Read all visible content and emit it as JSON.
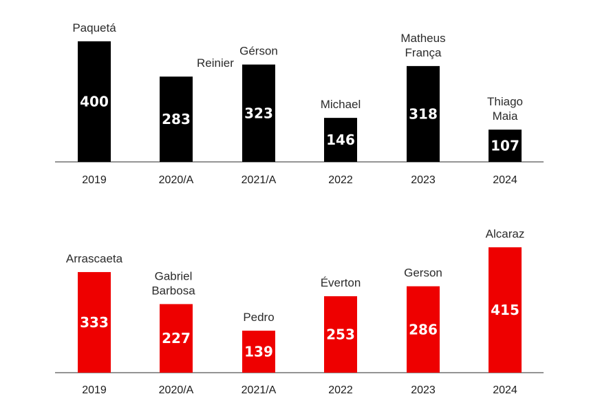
{
  "chart_data": [
    {
      "type": "bar",
      "title": "",
      "xlabel": "",
      "ylabel": "",
      "categories": [
        "2019",
        "2020/A",
        "2021/A",
        "2022",
        "2023",
        "2024"
      ],
      "series": [
        {
          "values": [
            400,
            283,
            323,
            146,
            318,
            107
          ]
        }
      ],
      "players": [
        "Paquetá",
        "Reinier",
        "Gérson",
        "Michael",
        "Matheus França",
        "Thiago Maia"
      ],
      "bar_color": "#000000",
      "ylim": [
        0,
        420
      ]
    },
    {
      "type": "bar",
      "title": "",
      "xlabel": "",
      "ylabel": "",
      "categories": [
        "2019",
        "2020/A",
        "2021/A",
        "2022",
        "2023",
        "2024"
      ],
      "series": [
        {
          "values": [
            333,
            227,
            139,
            253,
            286,
            415
          ]
        }
      ],
      "players": [
        "Arrascaeta",
        "Gabriel Barbosa",
        "Pedro",
        "Éverton",
        "Gerson",
        "Alcaraz"
      ],
      "bar_color": "#ee0000",
      "ylim": [
        0,
        420
      ]
    }
  ]
}
